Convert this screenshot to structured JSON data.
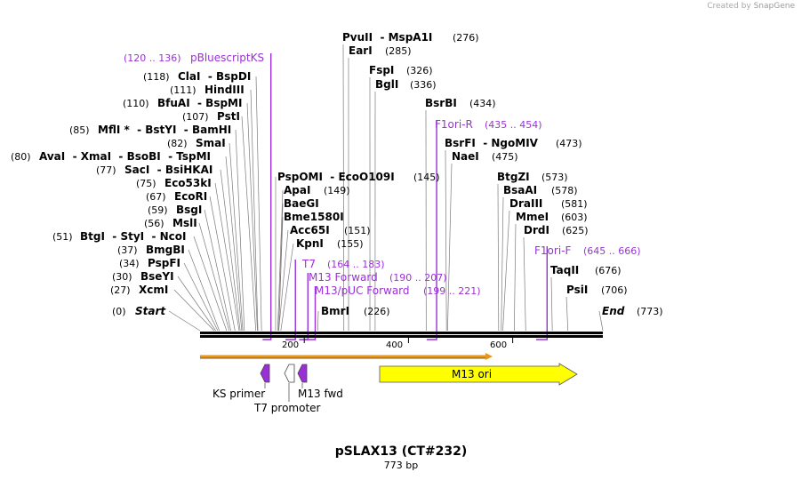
{
  "credit": {
    "prefix": "Created by",
    "brand": "SnapGene"
  },
  "map": {
    "title": "pSLAX13 (CT#232)",
    "length_label": "773 bp",
    "length": 773,
    "ticks": [
      "200",
      "400",
      "600"
    ]
  },
  "sites": [
    {
      "pos": "(0)",
      "name": "Start",
      "bp": 0,
      "special": true
    },
    {
      "pos": "(27)",
      "name": "XcmI",
      "bp": 27
    },
    {
      "pos": "(30)",
      "name": "BseYI",
      "bp": 30
    },
    {
      "pos": "(34)",
      "name": "PspFI",
      "bp": 34
    },
    {
      "pos": "(37)",
      "name": "BmgBI",
      "bp": 37
    },
    {
      "pos": "(51)",
      "name": "BtgI  - StyI  - NcoI",
      "bp": 51
    },
    {
      "pos": "(56)",
      "name": "MslI",
      "bp": 56
    },
    {
      "pos": "(59)",
      "name": "BsgI",
      "bp": 59
    },
    {
      "pos": "(67)",
      "name": "EcoRI",
      "bp": 67
    },
    {
      "pos": "(75)",
      "name": "Eco53kI",
      "bp": 75
    },
    {
      "pos": "(77)",
      "name": "SacI  - BsiHKAI",
      "bp": 77
    },
    {
      "pos": "(80)",
      "name": "AvaI  - XmaI  - BsoBI  - TspMI",
      "bp": 80
    },
    {
      "pos": "(82)",
      "name": "SmaI",
      "bp": 82
    },
    {
      "pos": "(85)",
      "name": "MflI *  - BstYI  - BamHI",
      "bp": 85
    },
    {
      "pos": "(107)",
      "name": "PstI",
      "bp": 107
    },
    {
      "pos": "(110)",
      "name": "BfuAI  - BspMI",
      "bp": 110
    },
    {
      "pos": "(111)",
      "name": "HindIII",
      "bp": 111
    },
    {
      "pos": "(118)",
      "name": "ClaI  - BspDI",
      "bp": 118
    },
    {
      "name": "KpnI",
      "pos": "(155)",
      "bp": 155
    },
    {
      "name": "Acc65I",
      "pos": "(151)",
      "bp": 151
    },
    {
      "name": "Bme1580I",
      "bp": 151
    },
    {
      "name": "BaeGI",
      "bp": 151
    },
    {
      "name": "ApaI",
      "pos": "(149)",
      "bp": 149
    },
    {
      "name": "PspOMI  - EcoO109I",
      "pos": "(145)",
      "bp": 145
    },
    {
      "name": "BmrI",
      "pos": "(226)",
      "bp": 226
    },
    {
      "name": "PvuII  - MspA1I",
      "pos": "(276)",
      "bp": 276
    },
    {
      "name": "EarI",
      "pos": "(285)",
      "bp": 285
    },
    {
      "name": "FspI",
      "pos": "(326)",
      "bp": 326
    },
    {
      "name": "BglI",
      "pos": "(336)",
      "bp": 336
    },
    {
      "name": "BsrBI",
      "pos": "(434)",
      "bp": 434
    },
    {
      "name": "BsrFI  - NgoMIV",
      "pos": "(473)",
      "bp": 473
    },
    {
      "name": "NaeI",
      "pos": "(475)",
      "bp": 475
    },
    {
      "name": "BtgZI",
      "pos": "(573)",
      "bp": 573
    },
    {
      "name": "BsaAI",
      "pos": "(578)",
      "bp": 578
    },
    {
      "name": "DraIII",
      "pos": "(581)",
      "bp": 581
    },
    {
      "name": "MmeI",
      "pos": "(603)",
      "bp": 603
    },
    {
      "name": "DrdI",
      "pos": "(625)",
      "bp": 625
    },
    {
      "name": "TaqII",
      "pos": "(676)",
      "bp": 676
    },
    {
      "name": "PsiI",
      "pos": "(706)",
      "bp": 706
    },
    {
      "name": "End",
      "pos": "(773)",
      "bp": 773,
      "special": true
    }
  ],
  "primers": [
    {
      "name": "pBluescriptKS",
      "range": "(120 .. 136)",
      "start": 120,
      "end": 136
    },
    {
      "name": "T7",
      "range": "(164 .. 183)",
      "start": 164,
      "end": 183
    },
    {
      "name": "M13 Forward",
      "range": "(190 .. 207)",
      "start": 190,
      "end": 207
    },
    {
      "name": "M13/pUC Forward",
      "range": "(199 .. 221)",
      "start": 199,
      "end": 221
    },
    {
      "name": "F1ori-R",
      "range": "(435 .. 454)",
      "start": 435,
      "end": 454
    },
    {
      "name": "F1ori-F",
      "range": "(645 .. 666)",
      "start": 645,
      "end": 666
    }
  ],
  "features": [
    {
      "label": "KS primer"
    },
    {
      "label": "T7 promoter"
    },
    {
      "label": "M13 fwd"
    },
    {
      "label": "M13 ori"
    }
  ],
  "colors": {
    "primer": "#9b30d9",
    "feature_purple": "#9a2fd8",
    "ori": "#ffff00",
    "orange": "#e8961a",
    "leader": "#7a7a7a"
  }
}
